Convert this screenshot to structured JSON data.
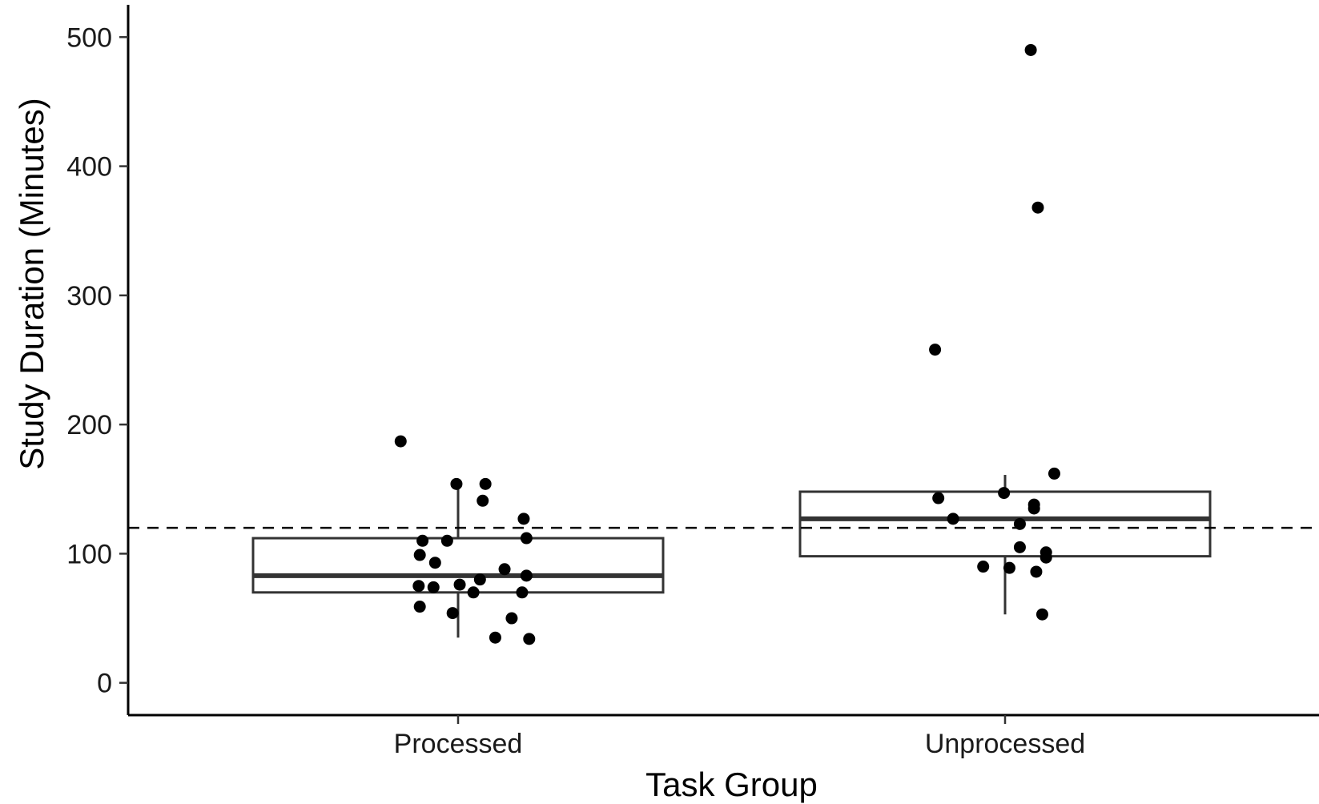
{
  "chart_data": {
    "type": "box",
    "title": "",
    "xlabel": "Task Group",
    "ylabel": "Study Duration (Minutes)",
    "categories": [
      "Processed",
      "Unprocessed"
    ],
    "ylim": [
      -25,
      525
    ],
    "yticks": [
      0,
      100,
      200,
      300,
      400,
      500
    ],
    "reference_line": {
      "y": 120,
      "style": "dashed"
    },
    "grid": false,
    "legend": "none",
    "boxes": [
      {
        "name": "Processed",
        "whisker_low": 35,
        "q1": 70,
        "median": 83,
        "q3": 112,
        "whisker_high": 154
      },
      {
        "name": "Unprocessed",
        "whisker_low": 53,
        "q1": 98,
        "median": 127,
        "q3": 148,
        "whisker_high": 161
      }
    ],
    "points": [
      {
        "group": "Processed",
        "jitter": -0.105,
        "y": 187
      },
      {
        "group": "Processed",
        "jitter": -0.003,
        "y": 154
      },
      {
        "group": "Processed",
        "jitter": 0.05,
        "y": 154
      },
      {
        "group": "Processed",
        "jitter": 0.045,
        "y": 141
      },
      {
        "group": "Processed",
        "jitter": 0.12,
        "y": 127
      },
      {
        "group": "Processed",
        "jitter": 0.125,
        "y": 112
      },
      {
        "group": "Processed",
        "jitter": -0.065,
        "y": 110
      },
      {
        "group": "Processed",
        "jitter": -0.02,
        "y": 110
      },
      {
        "group": "Processed",
        "jitter": -0.07,
        "y": 99
      },
      {
        "group": "Processed",
        "jitter": -0.042,
        "y": 93
      },
      {
        "group": "Processed",
        "jitter": 0.085,
        "y": 88
      },
      {
        "group": "Processed",
        "jitter": 0.125,
        "y": 83
      },
      {
        "group": "Processed",
        "jitter": 0.04,
        "y": 80
      },
      {
        "group": "Processed",
        "jitter": 0.003,
        "y": 76
      },
      {
        "group": "Processed",
        "jitter": -0.072,
        "y": 75
      },
      {
        "group": "Processed",
        "jitter": -0.045,
        "y": 74
      },
      {
        "group": "Processed",
        "jitter": 0.028,
        "y": 70
      },
      {
        "group": "Processed",
        "jitter": 0.117,
        "y": 70
      },
      {
        "group": "Processed",
        "jitter": -0.07,
        "y": 59
      },
      {
        "group": "Processed",
        "jitter": -0.01,
        "y": 54
      },
      {
        "group": "Processed",
        "jitter": 0.098,
        "y": 50
      },
      {
        "group": "Processed",
        "jitter": 0.068,
        "y": 35
      },
      {
        "group": "Processed",
        "jitter": 0.13,
        "y": 34
      },
      {
        "group": "Unprocessed",
        "jitter": 0.047,
        "y": 490
      },
      {
        "group": "Unprocessed",
        "jitter": 0.06,
        "y": 368
      },
      {
        "group": "Unprocessed",
        "jitter": -0.128,
        "y": 258
      },
      {
        "group": "Unprocessed",
        "jitter": 0.09,
        "y": 162
      },
      {
        "group": "Unprocessed",
        "jitter": -0.002,
        "y": 147
      },
      {
        "group": "Unprocessed",
        "jitter": -0.122,
        "y": 143
      },
      {
        "group": "Unprocessed",
        "jitter": 0.053,
        "y": 138
      },
      {
        "group": "Unprocessed",
        "jitter": 0.053,
        "y": 135
      },
      {
        "group": "Unprocessed",
        "jitter": -0.095,
        "y": 127
      },
      {
        "group": "Unprocessed",
        "jitter": 0.027,
        "y": 123
      },
      {
        "group": "Unprocessed",
        "jitter": 0.027,
        "y": 105
      },
      {
        "group": "Unprocessed",
        "jitter": 0.075,
        "y": 101
      },
      {
        "group": "Unprocessed",
        "jitter": 0.075,
        "y": 97
      },
      {
        "group": "Unprocessed",
        "jitter": -0.04,
        "y": 90
      },
      {
        "group": "Unprocessed",
        "jitter": 0.008,
        "y": 89
      },
      {
        "group": "Unprocessed",
        "jitter": 0.057,
        "y": 86
      },
      {
        "group": "Unprocessed",
        "jitter": 0.068,
        "y": 53
      }
    ],
    "colors": {
      "box_stroke": "#333333",
      "point": "#000000",
      "axis": "#000000"
    }
  }
}
